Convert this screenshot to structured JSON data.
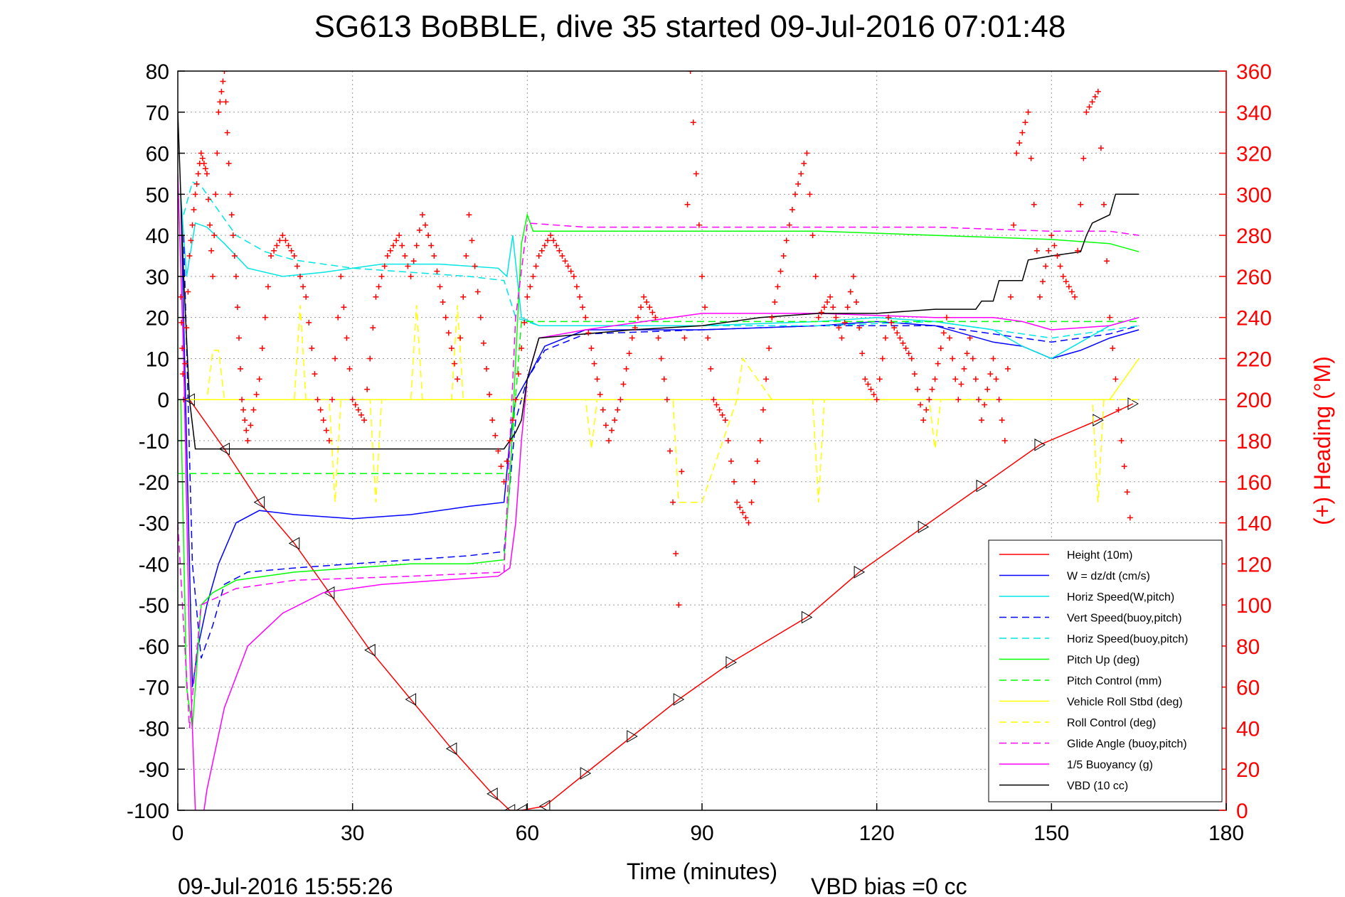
{
  "chart_data": {
    "type": "line",
    "title": "SG613 BoBBLE, dive 35 started 09-Jul-2016 07:01:48",
    "xlabel": "Time (minutes)",
    "ylabel_right": "(+) Heading (°M)",
    "footer_left": "09-Jul-2016 15:55:26",
    "footer_right": "VBD bias =0 cc",
    "xlim": [
      0,
      180
    ],
    "ylim": [
      -100,
      80
    ],
    "ylim_right": [
      0,
      360
    ],
    "x_ticks": [
      "0",
      "30",
      "60",
      "90",
      "120",
      "150",
      "180"
    ],
    "y_ticks": [
      "80",
      "70",
      "60",
      "50",
      "40",
      "30",
      "20",
      "10",
      "0",
      "-10",
      "-20",
      "-30",
      "-40",
      "-50",
      "-60",
      "-70",
      "-80",
      "-90",
      "-100"
    ],
    "y_ticks_right": [
      "360",
      "340",
      "320",
      "300",
      "280",
      "260",
      "240",
      "220",
      "200",
      "180",
      "160",
      "140",
      "120",
      "100",
      "80",
      "60",
      "40",
      "20",
      "0"
    ],
    "grid": true,
    "legend_position": "bottom-right",
    "series": [
      {
        "name": "Height (10m)",
        "color": "#ff0000",
        "style": "solid",
        "x": [
          2,
          8,
          14,
          20,
          26,
          33,
          40,
          47,
          54,
          57,
          59,
          63,
          70,
          78,
          86,
          95,
          108,
          117,
          128,
          138,
          148,
          158,
          164
        ],
        "y": [
          0,
          -12,
          -25,
          -35,
          -47,
          -61,
          -73,
          -85,
          -96,
          -100,
          -100,
          -99,
          -91,
          -82,
          -73,
          -64,
          -53,
          -42,
          -31,
          -21,
          -11,
          -5,
          -1
        ]
      },
      {
        "name": "W = dz/dt (cm/s)",
        "color": "#0000ff",
        "style": "solid",
        "x": [
          0.5,
          1.5,
          2.5,
          3.5,
          5,
          7,
          10,
          14,
          20,
          30,
          40,
          50,
          56,
          57,
          58,
          60,
          63,
          70,
          90,
          110,
          120,
          130,
          140,
          145,
          150,
          155,
          160,
          165
        ],
        "y": [
          50,
          -10,
          -70,
          -60,
          -50,
          -40,
          -30,
          -27,
          -28,
          -29,
          -28,
          -26,
          -25,
          -10,
          0,
          5,
          13,
          17,
          17,
          18,
          19,
          18,
          14,
          13,
          10,
          12,
          15,
          17
        ]
      },
      {
        "name": "Horiz Speed(W,pitch)",
        "color": "#00e5e5",
        "style": "solid",
        "x": [
          0.5,
          1.5,
          3,
          5,
          8,
          12,
          18,
          25,
          35,
          45,
          55,
          56.5,
          57.5,
          59,
          62,
          70,
          90,
          110,
          120,
          130,
          140,
          145,
          150,
          155,
          160,
          165
        ],
        "y": [
          50,
          30,
          43,
          42,
          38,
          32,
          30,
          31,
          33,
          33,
          32,
          30,
          40,
          20,
          18,
          18,
          18,
          19,
          20,
          19,
          17,
          13,
          10,
          14,
          18,
          20
        ]
      },
      {
        "name": "Vert Speed(buoy,pitch)",
        "color": "#0000ff",
        "style": "dashed",
        "x": [
          1,
          2.5,
          4,
          6,
          8,
          12,
          20,
          30,
          40,
          50,
          56,
          58,
          60,
          63,
          70,
          90,
          110,
          130,
          140,
          150,
          160,
          165
        ],
        "y": [
          40,
          -40,
          -63,
          -55,
          -45,
          -42,
          -41,
          -40,
          -39,
          -38,
          -37,
          -5,
          5,
          12,
          16,
          17,
          18,
          18,
          16,
          14,
          16,
          18
        ]
      },
      {
        "name": "Horiz Speed(buoy,pitch)",
        "color": "#00e5e5",
        "style": "dashed",
        "x": [
          1,
          2.5,
          4,
          6,
          10,
          15,
          20,
          30,
          40,
          50,
          56,
          58,
          62,
          70,
          90,
          110,
          130,
          140,
          150,
          160,
          165
        ],
        "y": [
          45,
          53,
          52,
          48,
          40,
          36,
          34,
          32,
          31,
          30,
          29,
          20,
          18,
          18,
          18,
          18,
          19,
          17,
          15,
          17,
          18
        ]
      },
      {
        "name": "Pitch Up (deg)",
        "color": "#00ff00",
        "style": "solid",
        "x": [
          0.5,
          1.5,
          2.5,
          4,
          6,
          10,
          20,
          30,
          40,
          50,
          56,
          57,
          58,
          59,
          60,
          61,
          70,
          90,
          110,
          130,
          150,
          160,
          165
        ],
        "y": [
          0,
          -70,
          -80,
          -50,
          -47,
          -44,
          -42,
          -41,
          -40,
          -40,
          -39,
          -20,
          10,
          38,
          45,
          41,
          41,
          41,
          41,
          40,
          39,
          38,
          36
        ]
      },
      {
        "name": "Pitch Control (mm)",
        "color": "#00ff00",
        "style": "dashed",
        "x": [
          0,
          4,
          57,
          59,
          165
        ],
        "y": [
          -18,
          -18,
          -18,
          19,
          19
        ]
      },
      {
        "name": "Vehicle Roll Stbd (deg)",
        "color": "#ffff00",
        "style": "solid",
        "x": [
          0,
          10,
          20,
          30,
          40,
          50,
          57,
          60,
          80,
          100,
          120,
          140,
          150,
          160,
          165
        ],
        "y": [
          0,
          0,
          0,
          0,
          0,
          0,
          0,
          0,
          0,
          0,
          0,
          0,
          0,
          0,
          10
        ]
      },
      {
        "name": "Roll Control (deg)",
        "color": "#ffff00",
        "style": "dashed",
        "x": [
          0,
          5,
          6,
          7,
          8,
          20,
          21,
          22,
          26,
          27,
          28,
          33,
          34,
          35,
          40,
          41,
          42,
          47,
          48,
          49,
          57,
          60,
          70,
          71,
          72,
          85,
          86,
          90,
          96,
          97,
          102,
          109,
          110,
          111,
          129,
          130,
          131,
          157,
          158,
          159,
          165
        ],
        "y": [
          0,
          0,
          12,
          12,
          0,
          0,
          23,
          0,
          0,
          -25,
          0,
          0,
          -25,
          0,
          0,
          23,
          0,
          0,
          23,
          0,
          0,
          0,
          0,
          -12,
          0,
          0,
          -25,
          -25,
          0,
          10,
          0,
          0,
          -25,
          0,
          0,
          -12,
          0,
          0,
          -25,
          0,
          0
        ]
      },
      {
        "name": "Glide Angle (buoy,pitch)",
        "color": "#ff00ff",
        "style": "dashed",
        "x": [
          0,
          2,
          4,
          10,
          20,
          40,
          56,
          58,
          60,
          70,
          90,
          110,
          130,
          150,
          160,
          165
        ],
        "y": [
          -30,
          -80,
          -50,
          -46,
          -44,
          -43,
          -42,
          20,
          43,
          42,
          42,
          42,
          42,
          41,
          41,
          40
        ]
      },
      {
        "name": "1/5 Buoyancy (g)",
        "color": "#ff00ff",
        "style": "solid",
        "x": [
          0,
          1,
          2,
          3,
          4,
          5,
          8,
          12,
          18,
          25,
          35,
          45,
          55,
          57,
          58,
          59,
          60,
          62,
          70,
          80,
          90,
          110,
          130,
          140,
          145,
          150,
          160,
          165
        ],
        "y": [
          55,
          10,
          -60,
          -100,
          -105,
          -95,
          -75,
          -60,
          -52,
          -47,
          -45,
          -44,
          -43,
          -41,
          -30,
          -10,
          5,
          15,
          17,
          19,
          21,
          21,
          20,
          20,
          19,
          17,
          18,
          20
        ]
      },
      {
        "name": "VBD (10 cc)",
        "color": "#000000",
        "style": "solid",
        "x": [
          0,
          1,
          2,
          3,
          56,
          57,
          58,
          59,
          60,
          62,
          70,
          78,
          90,
          100,
          110,
          120,
          130,
          137,
          138,
          140,
          141,
          145,
          146,
          150,
          155,
          156,
          157,
          160,
          161,
          165
        ],
        "y": [
          70,
          30,
          0,
          -12,
          -12,
          -10,
          -8,
          -5,
          5,
          15,
          16,
          17,
          18,
          20,
          21,
          21,
          22,
          22,
          24,
          24,
          29,
          29,
          34,
          35,
          36,
          40,
          43,
          45,
          50,
          50
        ]
      },
      {
        "name": "(+) Heading",
        "color": "#ff0000",
        "style": "markers",
        "axis": "right",
        "x": [
          0.5,
          1,
          2,
          3,
          4,
          5,
          6,
          7,
          8,
          9,
          10,
          11,
          12,
          14,
          16,
          18,
          20,
          22,
          24,
          26,
          28,
          30,
          32,
          34,
          36,
          38,
          40,
          42,
          44,
          46,
          48,
          50,
          52,
          54,
          56,
          58,
          60,
          62,
          64,
          66,
          68,
          70,
          72,
          74,
          76,
          78,
          80,
          82,
          84,
          86,
          88,
          90,
          92,
          94,
          96,
          98,
          100,
          102,
          104,
          106,
          108,
          110,
          112,
          114,
          116,
          118,
          120,
          122,
          124,
          126,
          128,
          130,
          132,
          134,
          136,
          138,
          140,
          142,
          144,
          146,
          148,
          150,
          152,
          154,
          156,
          158,
          160,
          162,
          164
        ],
        "y": [
          250,
          200,
          270,
          300,
          320,
          310,
          260,
          340,
          360,
          300,
          260,
          200,
          180,
          210,
          270,
          280,
          270,
          250,
          200,
          180,
          260,
          200,
          190,
          250,
          270,
          280,
          260,
          290,
          270,
          240,
          210,
          290,
          240,
          190,
          160,
          200,
          250,
          270,
          280,
          270,
          260,
          240,
          210,
          180,
          200,
          230,
          250,
          240,
          200,
          100,
          360,
          260,
          200,
          190,
          150,
          140,
          180,
          240,
          270,
          300,
          320,
          240,
          250,
          230,
          260,
          210,
          200,
          240,
          230,
          220,
          190,
          210,
          240,
          200,
          230,
          190,
          220,
          180,
          320,
          340,
          250,
          280,
          260,
          250,
          340,
          350,
          240,
          180,
          130
        ]
      }
    ]
  }
}
